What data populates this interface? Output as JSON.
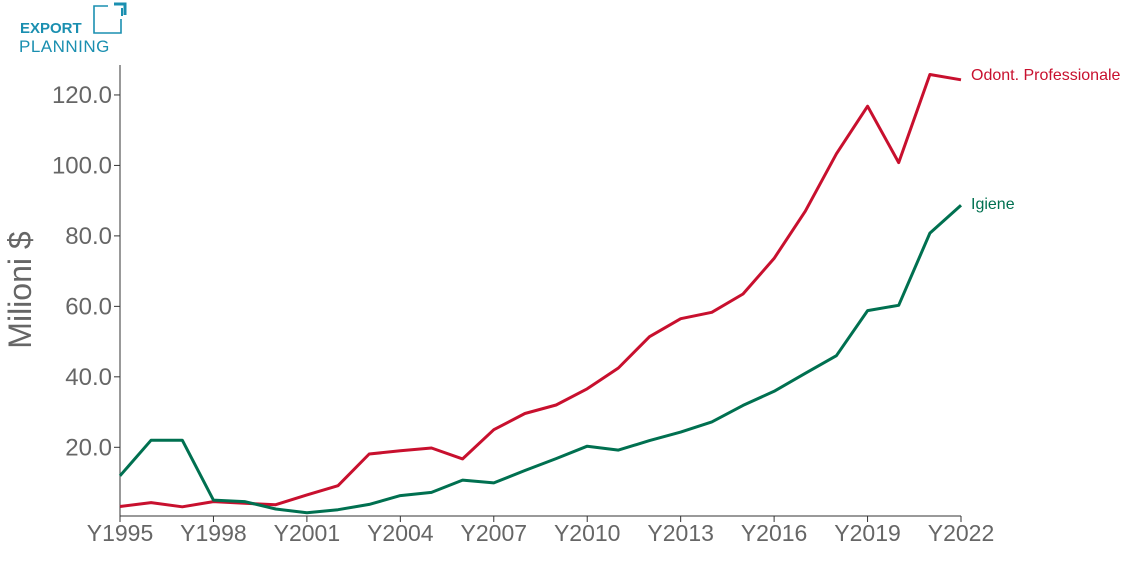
{
  "logo": {
    "line1": "EXPORT",
    "line2": "PLANNING",
    "color": "#1a8fb0"
  },
  "chart_data": {
    "type": "line",
    "ylabel": "Milioni $",
    "xlabel": "",
    "x": [
      "Y1995",
      "Y1996",
      "Y1997",
      "Y1998",
      "Y1999",
      "Y2000",
      "Y2001",
      "Y2002",
      "Y2003",
      "Y2004",
      "Y2005",
      "Y2006",
      "Y2007",
      "Y2008",
      "Y2009",
      "Y2010",
      "Y2011",
      "Y2012",
      "Y2013",
      "Y2014",
      "Y2015",
      "Y2016",
      "Y2017",
      "Y2018",
      "Y2019",
      "Y2020",
      "Y2021",
      "Y2022"
    ],
    "xticks": [
      "Y1995",
      "Y1998",
      "Y2001",
      "Y2004",
      "Y2007",
      "Y2010",
      "Y2013",
      "Y2016",
      "Y2019",
      "Y2022"
    ],
    "yticks": [
      "20.0",
      "40.0",
      "60.0",
      "80.0",
      "100.0",
      "120.0"
    ],
    "ylim": [
      0.5,
      128.5
    ],
    "grid": false,
    "series": [
      {
        "name": "Odont. Professionale",
        "color": "#c8102e",
        "values": [
          3.2,
          4.3,
          3.1,
          4.6,
          4.1,
          3.7,
          6.5,
          9.1,
          18.1,
          19.0,
          19.8,
          16.7,
          25.0,
          29.6,
          32.0,
          36.6,
          42.5,
          51.4,
          56.5,
          58.3,
          63.5,
          73.6,
          87.0,
          103.3,
          116.8,
          100.8,
          125.8,
          124.3
        ]
      },
      {
        "name": "Igiene",
        "color": "#007050",
        "values": [
          11.9,
          22.0,
          22.0,
          5.0,
          4.6,
          2.5,
          1.4,
          2.3,
          3.8,
          6.3,
          7.2,
          10.7,
          9.9,
          13.4,
          16.8,
          20.3,
          19.2,
          21.9,
          24.3,
          27.2,
          31.9,
          35.9,
          41.0,
          46.0,
          58.8,
          60.3,
          80.8,
          88.7
        ]
      }
    ]
  }
}
